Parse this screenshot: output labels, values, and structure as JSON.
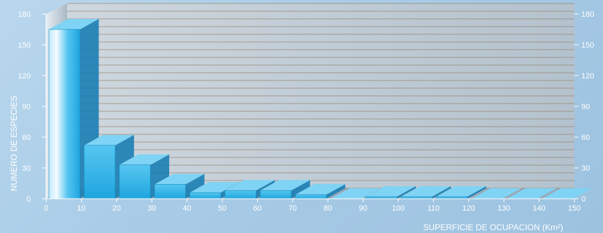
{
  "chart_data": {
    "type": "bar",
    "bin_edges": [
      0,
      10,
      20,
      30,
      40,
      50,
      60,
      70,
      80,
      90,
      100,
      110,
      120,
      130,
      140,
      150
    ],
    "values": [
      165,
      52,
      33,
      14,
      6,
      8,
      8,
      4,
      0,
      2,
      2,
      2,
      0,
      0,
      0
    ],
    "xticks": [
      0,
      10,
      20,
      30,
      40,
      50,
      60,
      70,
      80,
      90,
      100,
      110,
      120,
      130,
      140,
      150
    ],
    "yticks": [
      0,
      30,
      60,
      90,
      120,
      150,
      180
    ],
    "ylim": [
      0,
      180
    ],
    "xlim": [
      0,
      150
    ],
    "xlabel": "SUPERFICIE DE OCUPACION (Km²)",
    "ylabel": "NUMERO DE ESPECIES",
    "grid": true
  },
  "colors": {
    "bar_front": "#2fb4e8",
    "bar_top": "#7fd3f4",
    "bar_side": "#1b7fb4",
    "wall_back": "#c3cdd6",
    "grid_line": "#8f7d62",
    "text": "#ffffff"
  }
}
